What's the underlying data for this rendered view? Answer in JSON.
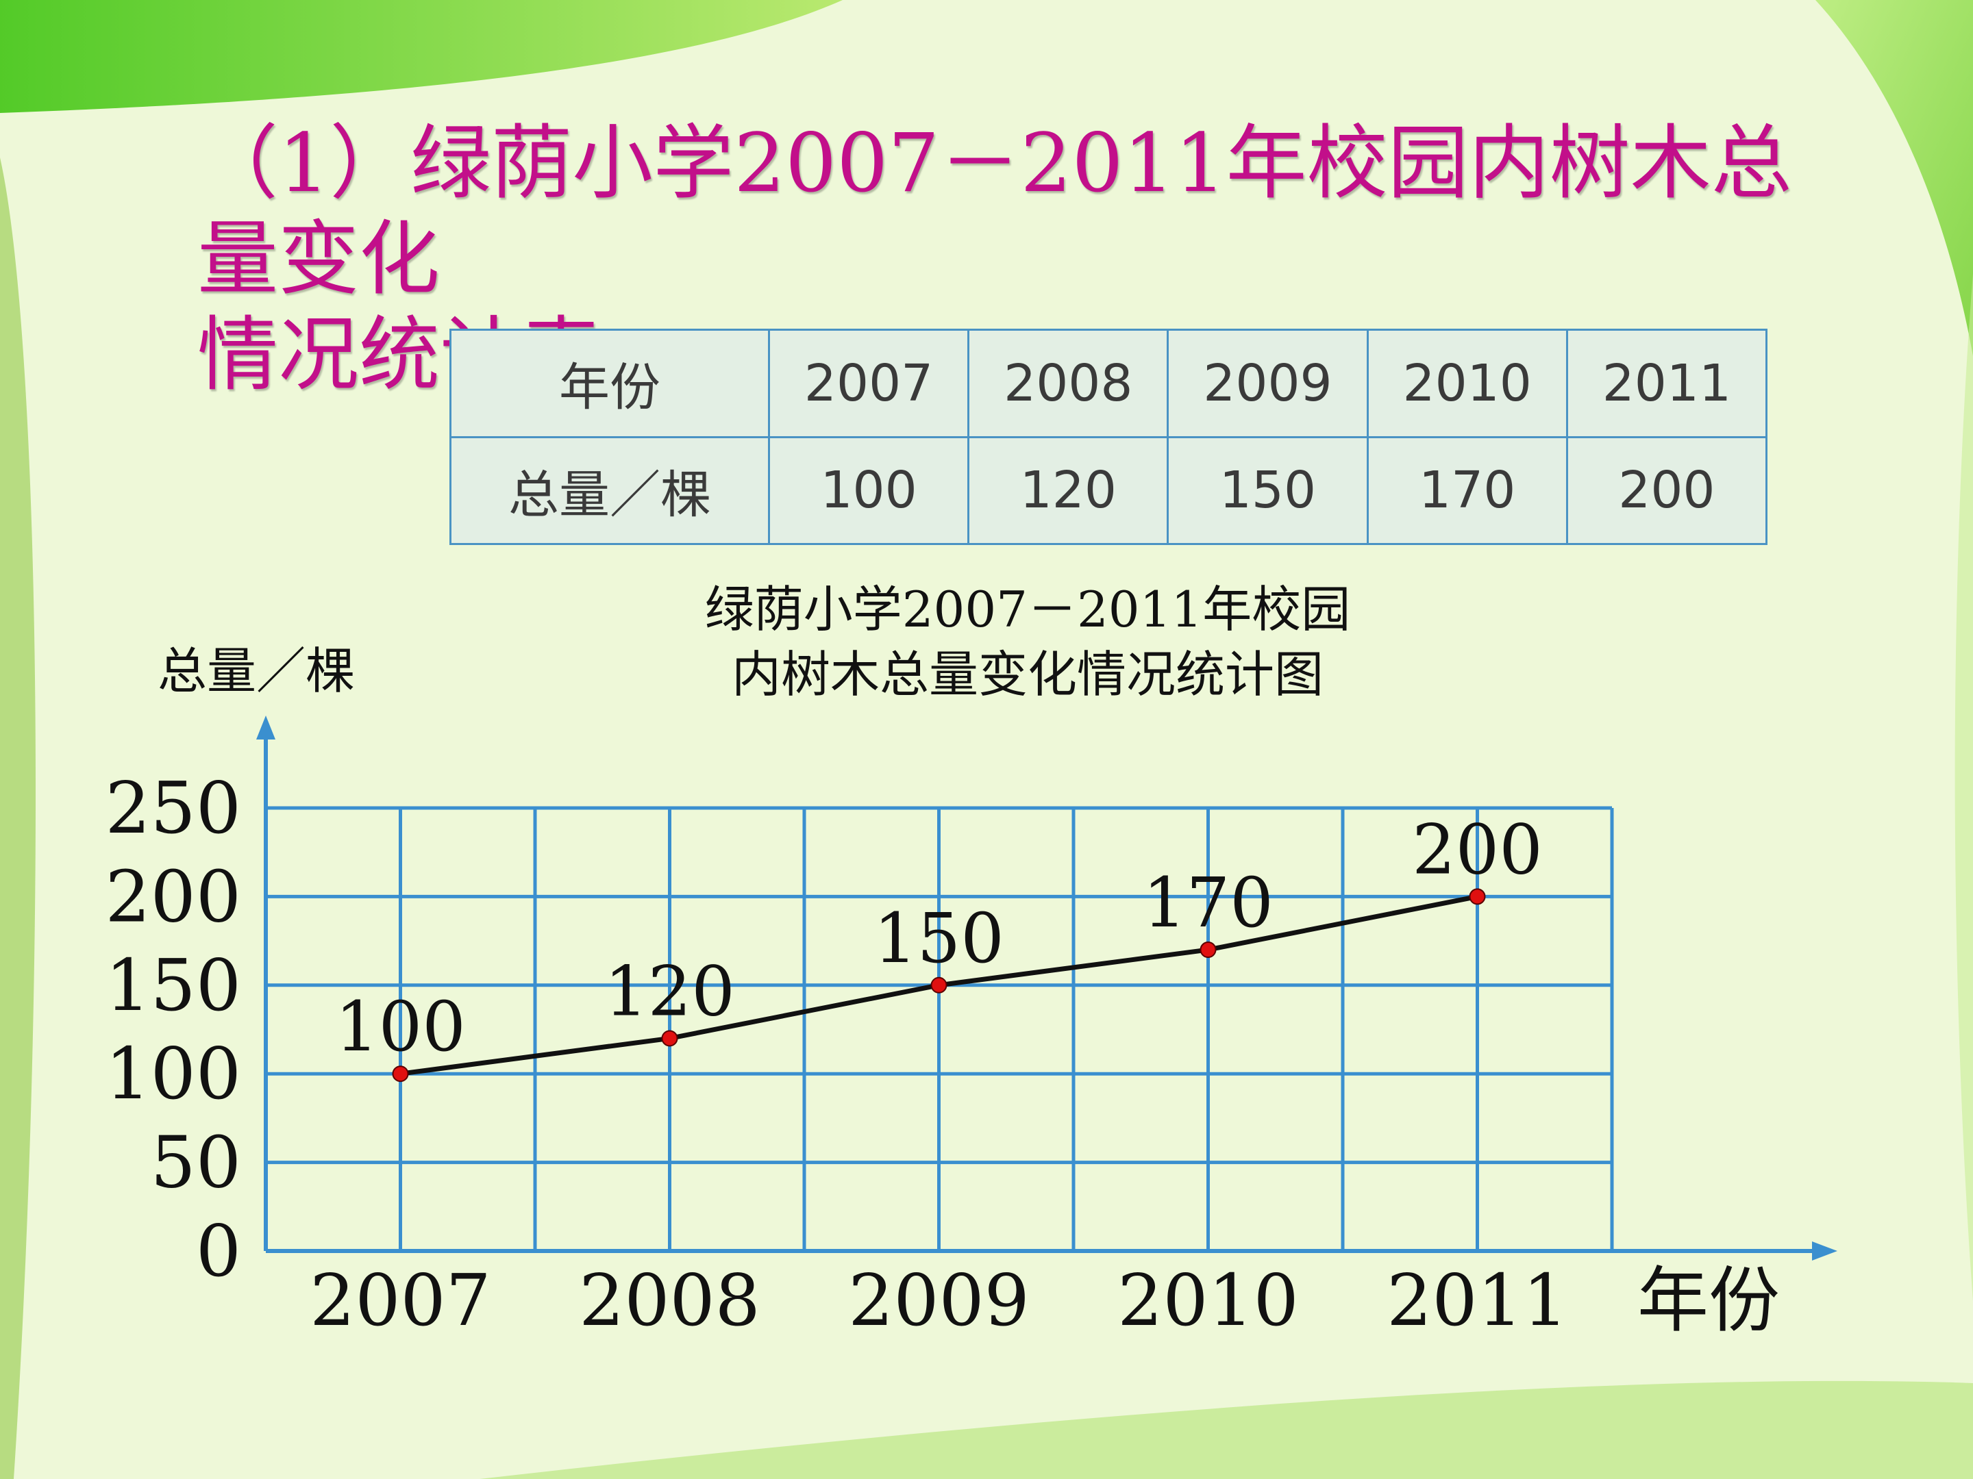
{
  "heading": {
    "line1": "（1）绿荫小学2007－2011年校园内树木总量变化",
    "line2": "情况统计表。"
  },
  "table": {
    "row1_label": "年份",
    "row2_label": "总量／棵",
    "years": [
      "2007",
      "2008",
      "2009",
      "2010",
      "2011"
    ],
    "totals": [
      "100",
      "120",
      "150",
      "170",
      "200"
    ]
  },
  "colors": {
    "heading": "#c20f8a",
    "grid": "#3a8fcf",
    "line": "#111111",
    "point": "#e01010",
    "background": "#eef8d8",
    "table_fill": "#e3efe4"
  },
  "chart_data": {
    "type": "line",
    "title_line1": "绿荫小学2007－2011年校园",
    "title_line2": "内树木总量变化情况统计图",
    "xlabel": "年份",
    "ylabel": "总量／棵",
    "categories": [
      "2007",
      "2008",
      "2009",
      "2010",
      "2011"
    ],
    "values": [
      100,
      120,
      150,
      170,
      200
    ],
    "data_labels": [
      "100",
      "120",
      "150",
      "170",
      "200"
    ],
    "yticks": [
      0,
      50,
      100,
      150,
      200,
      250
    ],
    "ylim": [
      0,
      250
    ],
    "grid": true,
    "legend": "none"
  }
}
